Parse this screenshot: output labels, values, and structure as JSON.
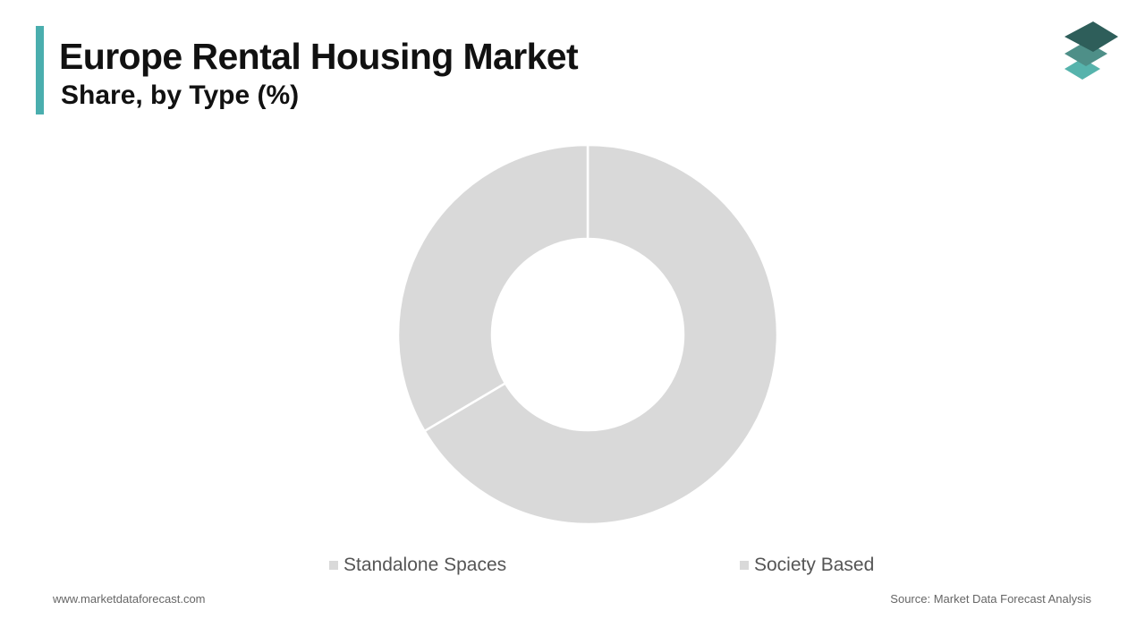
{
  "header": {
    "title": "Europe Rental Housing Market",
    "subtitle": "Share, by Type (%)",
    "accent_color": "#4aaeae"
  },
  "logo": {
    "icon": "stacked-layers-icon",
    "colors": [
      "#2e5e5a",
      "#4e8f88",
      "#56b3ac"
    ]
  },
  "chart_data": {
    "type": "pie",
    "variant": "donut",
    "title": "Europe Rental Housing Market",
    "subtitle": "Share, by Type (%)",
    "categories": [
      "Standalone Spaces",
      "Society Based"
    ],
    "values": [
      66.5,
      33.5
    ],
    "colors": [
      "#d9d9d9",
      "#d9d9d9"
    ],
    "data_labels": false,
    "legend_position": "bottom"
  },
  "legend": [
    {
      "label": "Standalone Spaces",
      "color": "#d9d9d9"
    },
    {
      "label": "Society Based",
      "color": "#d9d9d9"
    }
  ],
  "footer": {
    "website": "www.marketdataforecast.com",
    "source": "Source: Market Data Forecast Analysis"
  }
}
